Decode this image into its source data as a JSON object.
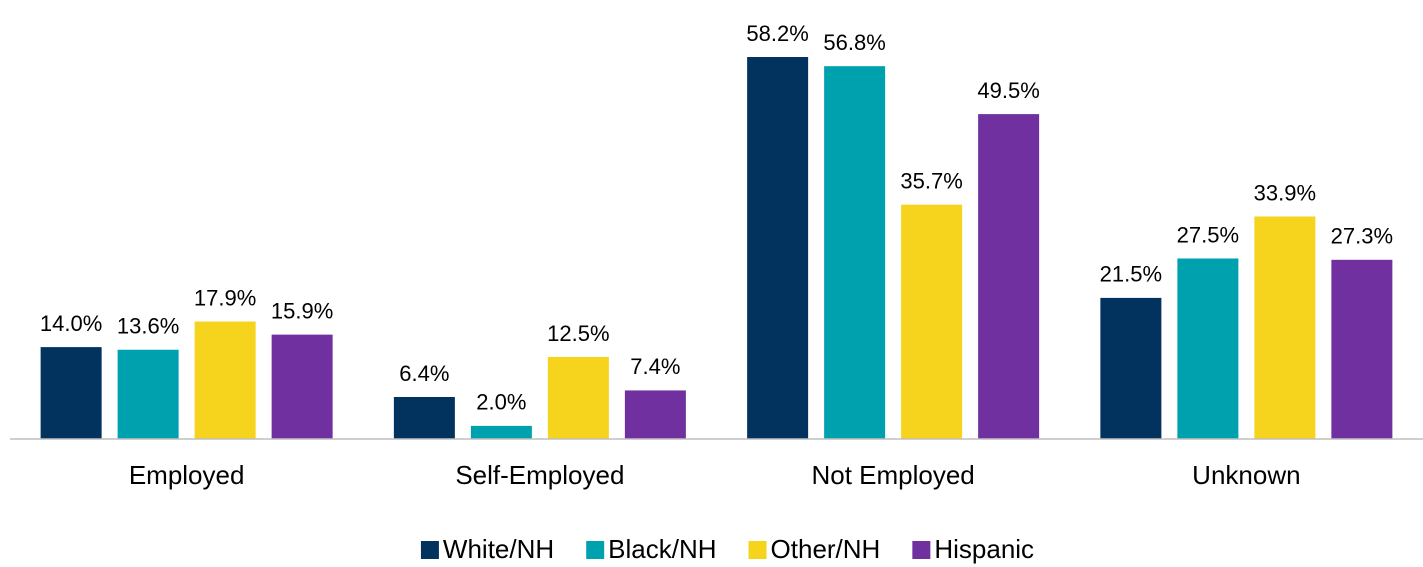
{
  "chart_data": {
    "type": "bar",
    "categories": [
      "Employed",
      "Self-Employed",
      "Not Employed",
      "Unknown"
    ],
    "series": [
      {
        "name": "White/NH",
        "color": "#02335f",
        "values": [
          14.0,
          6.4,
          58.2,
          21.5
        ],
        "value_labels": [
          "14.0%",
          "6.4%",
          "58.2%",
          "21.5%"
        ]
      },
      {
        "name": "Black/NH",
        "color": "#00a1ae",
        "values": [
          13.6,
          2.0,
          56.8,
          27.5
        ],
        "value_labels": [
          "13.6%",
          "2.0%",
          "56.8%",
          "27.5%"
        ]
      },
      {
        "name": "Other/NH",
        "color": "#f6d31c",
        "values": [
          17.9,
          12.5,
          35.7,
          33.9
        ],
        "value_labels": [
          "17.9%",
          "12.5%",
          "35.7%",
          "33.9%"
        ]
      },
      {
        "name": "Hispanic",
        "color": "#7030a0",
        "values": [
          15.9,
          7.4,
          49.5,
          27.3
        ],
        "value_labels": [
          "15.9%",
          "7.4%",
          "49.5%",
          "27.3%"
        ]
      }
    ],
    "legend": "bottom"
  }
}
